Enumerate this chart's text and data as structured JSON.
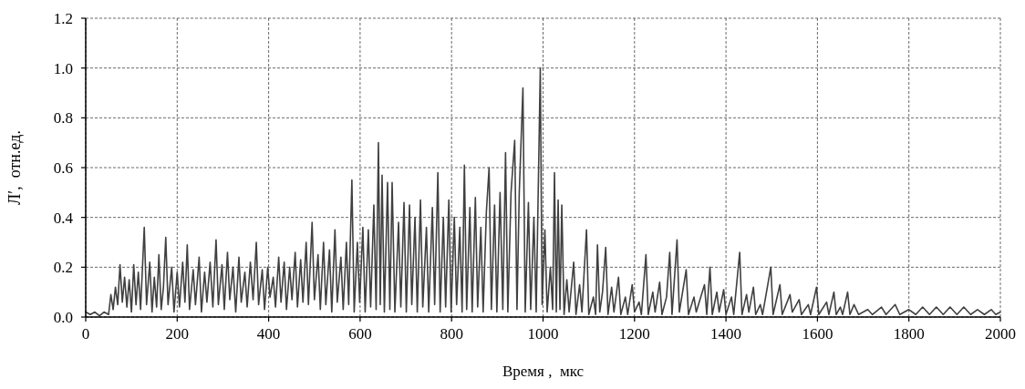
{
  "chart_data": {
    "type": "line",
    "xlabel": "Время ,  мкс",
    "ylabel": "Л′,  отн.ед.",
    "xlim": [
      0,
      2000
    ],
    "xticks": [
      0,
      200,
      400,
      600,
      800,
      1000,
      1200,
      1400,
      1600,
      1800,
      2000
    ],
    "ylim": [
      0,
      1.2
    ],
    "yticks": [
      {
        "value": 0,
        "label": "0.0"
      },
      {
        "value": 0.2,
        "label": "0.2"
      },
      {
        "value": 0.4,
        "label": "0.4"
      },
      {
        "value": 0.6,
        "label": "0.6"
      },
      {
        "value": 0.8,
        "label": "0.8"
      },
      {
        "value": 1,
        "label": "1.0"
      },
      {
        "value": 1.2,
        "label": "1.2"
      }
    ],
    "grid": true,
    "line_style": "solid",
    "marker": "none",
    "series": [
      {
        "color": "#404040",
        "x": [
          0,
          10,
          20,
          30,
          40,
          50,
          55,
          60,
          65,
          70,
          75,
          80,
          85,
          90,
          95,
          100,
          105,
          110,
          115,
          120,
          128,
          133,
          140,
          145,
          150,
          155,
          160,
          165,
          170,
          175,
          180,
          188,
          193,
          200,
          205,
          212,
          217,
          222,
          227,
          235,
          240,
          248,
          253,
          260,
          265,
          272,
          278,
          285,
          290,
          298,
          303,
          310,
          315,
          322,
          328,
          335,
          340,
          348,
          353,
          360,
          366,
          373,
          378,
          386,
          391,
          398,
          403,
          410,
          415,
          422,
          427,
          434,
          439,
          446,
          451,
          458,
          463,
          470,
          475,
          482,
          487,
          495,
          500,
          508,
          513,
          520,
          525,
          533,
          538,
          545,
          550,
          558,
          563,
          570,
          575,
          582,
          587,
          594,
          599,
          606,
          611,
          618,
          623,
          630,
          635,
          640,
          644,
          648,
          653,
          660,
          665,
          670,
          676,
          684,
          689,
          696,
          701,
          708,
          713,
          720,
          725,
          732,
          737,
          745,
          750,
          758,
          763,
          770,
          775,
          782,
          787,
          794,
          799,
          806,
          811,
          818,
          823,
          828,
          833,
          840,
          845,
          852,
          857,
          864,
          869,
          876,
          882,
          887,
          894,
          899,
          906,
          912,
          918,
          923,
          930,
          938,
          943,
          948,
          956,
          961,
          968,
          973,
          980,
          985,
          994,
          998,
          1004,
          1009,
          1016,
          1021,
          1025,
          1029,
          1033,
          1037,
          1041,
          1046,
          1052,
          1057,
          1067,
          1072,
          1080,
          1085,
          1095,
          1100,
          1110,
          1115,
          1119,
          1124,
          1130,
          1137,
          1142,
          1150,
          1155,
          1165,
          1170,
          1180,
          1185,
          1195,
          1200,
          1210,
          1215,
          1225,
          1230,
          1240,
          1245,
          1255,
          1260,
          1270,
          1277,
          1282,
          1293,
          1298,
          1313,
          1318,
          1330,
          1335,
          1353,
          1358,
          1365,
          1370,
          1380,
          1385,
          1395,
          1400,
          1412,
          1417,
          1430,
          1435,
          1445,
          1450,
          1460,
          1465,
          1475,
          1480,
          1498,
          1503,
          1518,
          1523,
          1540,
          1545,
          1560,
          1565,
          1580,
          1585,
          1598,
          1603,
          1620,
          1625,
          1636,
          1641,
          1650,
          1655,
          1666,
          1671,
          1680,
          1690,
          1710,
          1720,
          1740,
          1750,
          1770,
          1780,
          1800,
          1815,
          1830,
          1845,
          1860,
          1875,
          1890,
          1905,
          1920,
          1935,
          1950,
          1965,
          1980,
          1990,
          2000
        ],
        "values": [
          0.02,
          0.01,
          0.02,
          0.005,
          0.02,
          0.01,
          0.09,
          0.03,
          0.12,
          0.05,
          0.21,
          0.06,
          0.16,
          0.04,
          0.15,
          0.02,
          0.21,
          0.05,
          0.18,
          0.03,
          0.36,
          0.05,
          0.22,
          0.02,
          0.16,
          0.04,
          0.25,
          0.03,
          0.12,
          0.32,
          0.05,
          0.2,
          0.02,
          0.18,
          0.04,
          0.22,
          0.06,
          0.29,
          0.03,
          0.19,
          0.05,
          0.24,
          0.02,
          0.18,
          0.06,
          0.22,
          0.04,
          0.31,
          0.05,
          0.21,
          0.03,
          0.26,
          0.07,
          0.2,
          0.02,
          0.24,
          0.06,
          0.18,
          0.04,
          0.22,
          0.07,
          0.3,
          0.05,
          0.19,
          0.03,
          0.2,
          0.08,
          0.16,
          0.04,
          0.24,
          0.06,
          0.22,
          0.03,
          0.2,
          0.07,
          0.26,
          0.04,
          0.23,
          0.06,
          0.3,
          0.05,
          0.38,
          0.07,
          0.25,
          0.03,
          0.3,
          0.05,
          0.27,
          0.02,
          0.35,
          0.06,
          0.24,
          0.03,
          0.3,
          0.05,
          0.55,
          0.02,
          0.3,
          0.06,
          0.36,
          0.02,
          0.35,
          0.04,
          0.45,
          0.03,
          0.7,
          0.05,
          0.57,
          0.02,
          0.54,
          0.03,
          0.54,
          0.02,
          0.38,
          0.04,
          0.46,
          0.02,
          0.45,
          0.05,
          0.4,
          0.02,
          0.47,
          0.04,
          0.36,
          0.02,
          0.44,
          0.05,
          0.58,
          0.02,
          0.4,
          0.04,
          0.47,
          0.02,
          0.4,
          0.05,
          0.36,
          0.02,
          0.61,
          0.03,
          0.44,
          0.02,
          0.48,
          0.04,
          0.36,
          0.02,
          0.42,
          0.6,
          0.03,
          0.45,
          0.02,
          0.5,
          0.03,
          0.66,
          0.02,
          0.5,
          0.71,
          0.03,
          0.5,
          0.92,
          0.02,
          0.46,
          0.03,
          0.4,
          0.02,
          1.0,
          0.05,
          0.35,
          0.02,
          0.2,
          0.03,
          0.58,
          0.02,
          0.47,
          0.03,
          0.45,
          0.01,
          0.15,
          0.02,
          0.22,
          0.01,
          0.13,
          0.02,
          0.35,
          0.01,
          0.08,
          0.01,
          0.29,
          0.02,
          0.1,
          0.28,
          0.01,
          0.12,
          0.02,
          0.16,
          0.01,
          0.08,
          0.01,
          0.13,
          0.02,
          0.06,
          0.01,
          0.25,
          0.01,
          0.1,
          0.02,
          0.14,
          0.01,
          0.08,
          0.26,
          0.01,
          0.31,
          0.02,
          0.19,
          0.01,
          0.08,
          0.02,
          0.13,
          0.01,
          0.2,
          0.01,
          0.1,
          0.02,
          0.11,
          0.01,
          0.08,
          0.01,
          0.26,
          0.01,
          0.09,
          0.02,
          0.12,
          0.01,
          0.05,
          0.01,
          0.2,
          0.01,
          0.13,
          0.01,
          0.09,
          0.02,
          0.07,
          0.01,
          0.05,
          0.01,
          0.12,
          0.01,
          0.06,
          0.01,
          0.1,
          0.01,
          0.04,
          0.01,
          0.1,
          0.01,
          0.05,
          0.01,
          0.03,
          0.01,
          0.04,
          0.01,
          0.05,
          0.01,
          0.03,
          0.01,
          0.04,
          0.01,
          0.04,
          0.01,
          0.04,
          0.01,
          0.04,
          0.01,
          0.03,
          0.01,
          0.03,
          0.01,
          0.02
        ]
      }
    ]
  }
}
